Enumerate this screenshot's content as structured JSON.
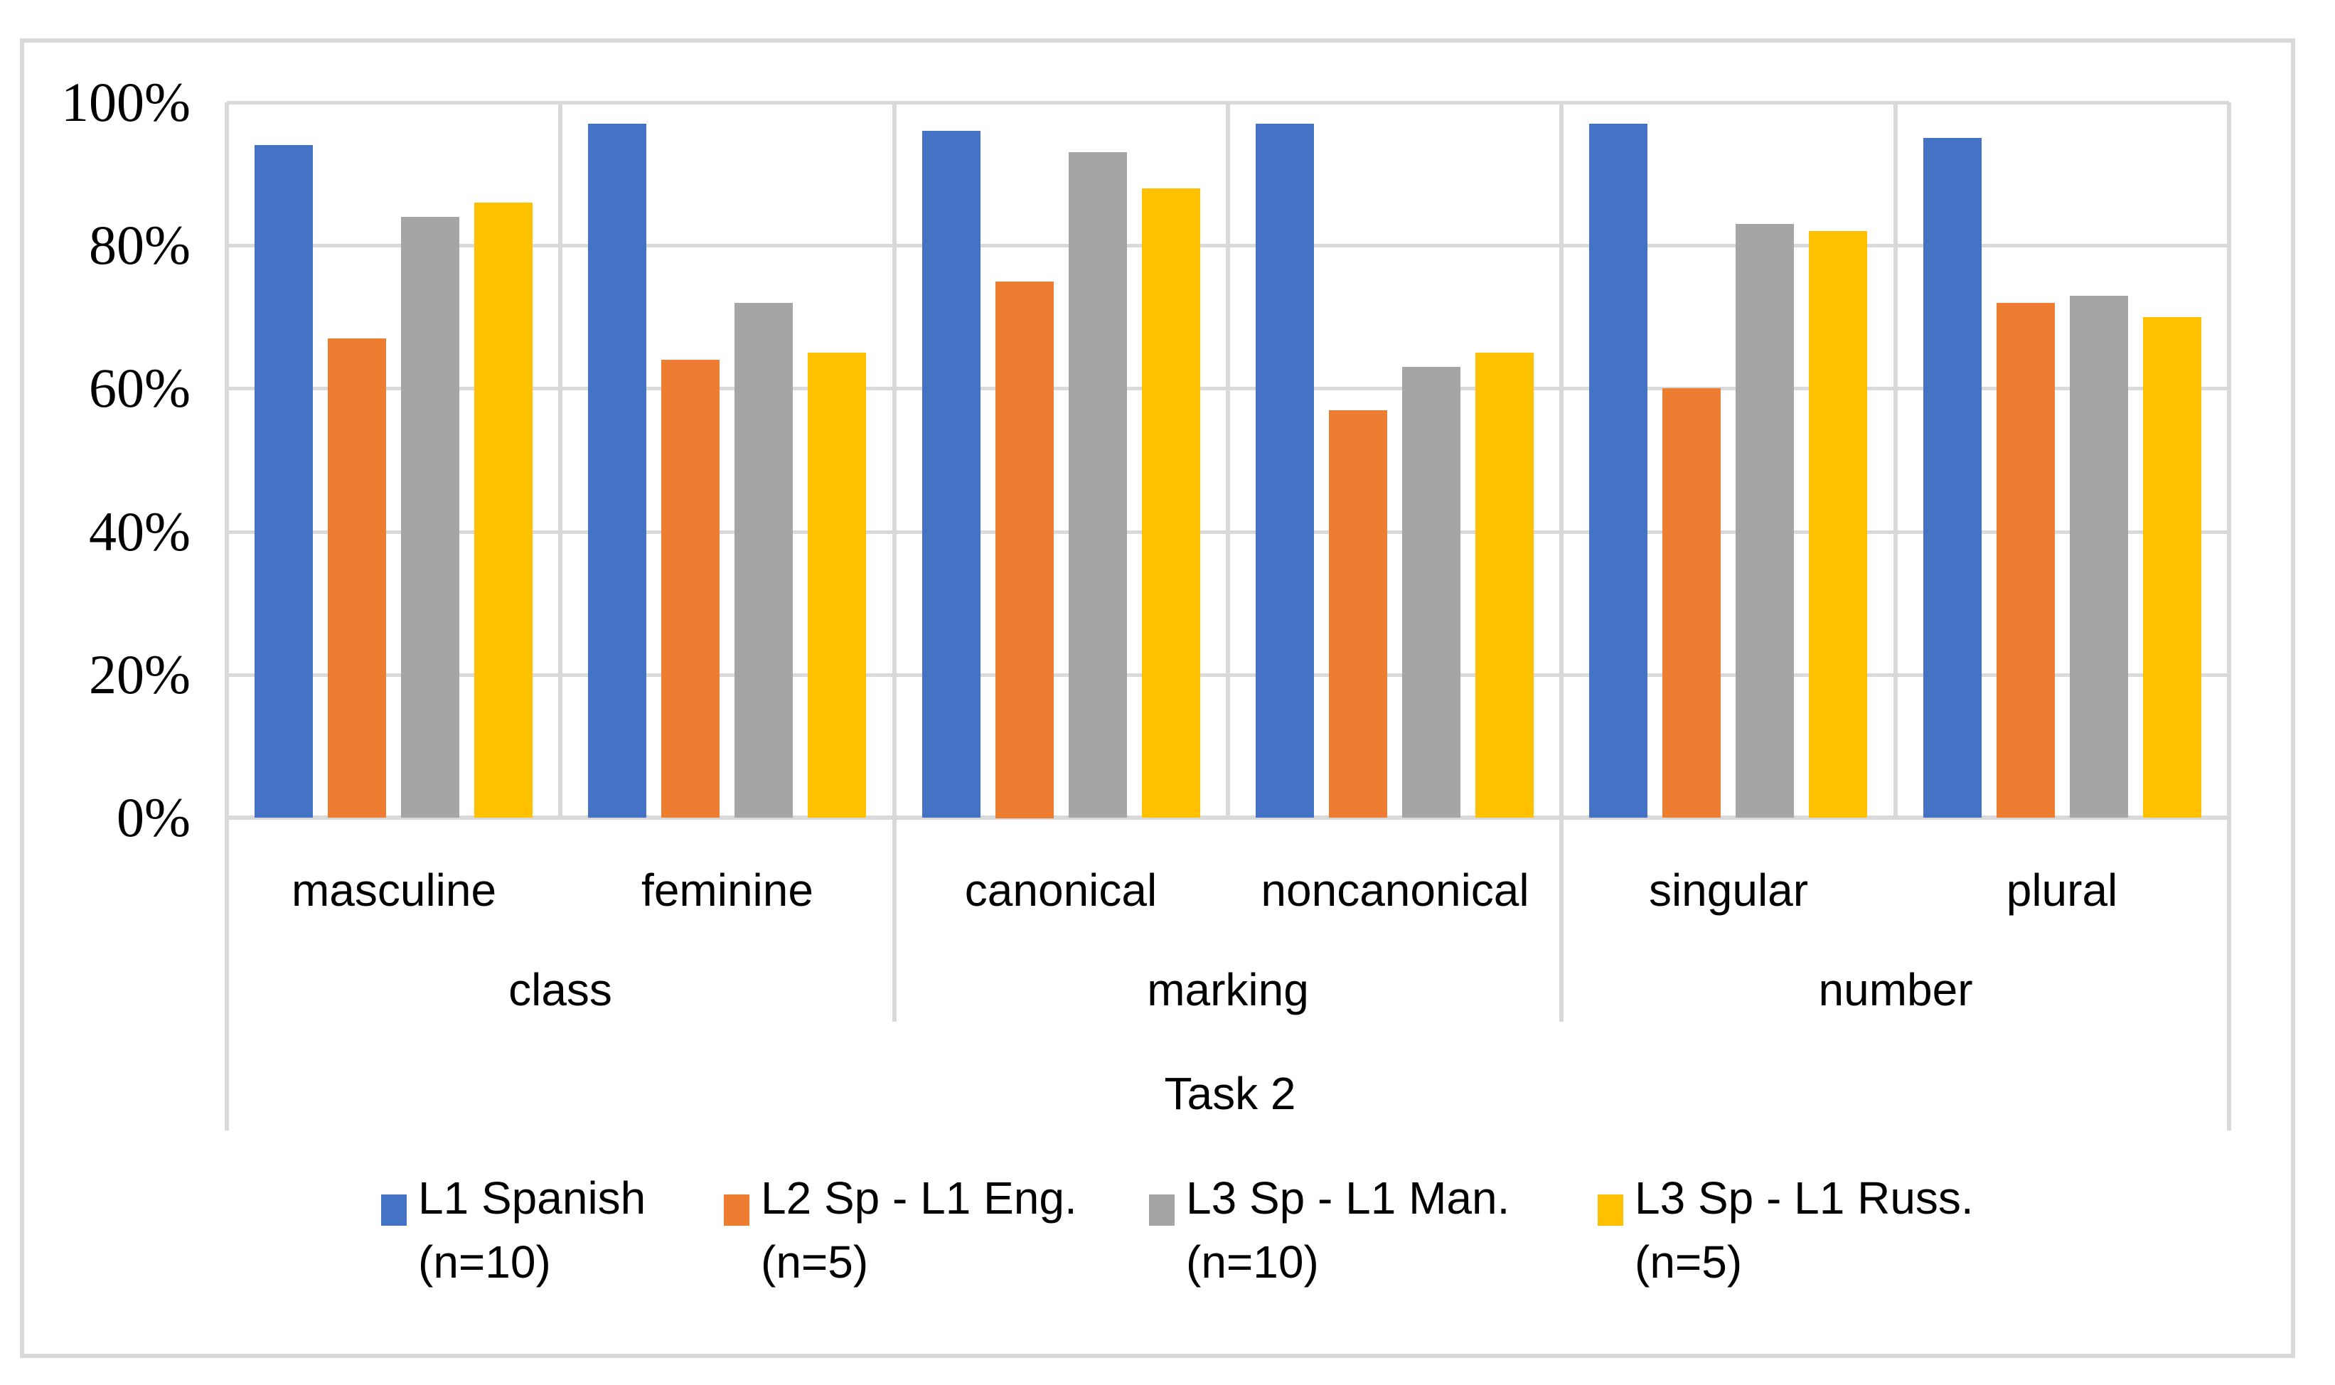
{
  "chart_data": {
    "type": "bar",
    "title": "",
    "x_axis_title": "Task 2",
    "ylabel": "",
    "xlabel": "",
    "ylim": [
      0,
      100
    ],
    "grid": true,
    "legend_position": "bottom",
    "values_unit": "percent",
    "y_axis": {
      "min": 0,
      "max": 100,
      "step": 20,
      "tick_labels": [
        "100%",
        "80%",
        "60%",
        "40%",
        "20%",
        "0%"
      ]
    },
    "categories": [
      "masculine",
      "feminine",
      "canonical",
      "noncanonical",
      "singular",
      "plural"
    ],
    "category_groups": [
      {
        "label": "class",
        "span": [
          "masculine",
          "feminine"
        ]
      },
      {
        "label": "marking",
        "span": [
          "canonical",
          "noncanonical"
        ]
      },
      {
        "label": "number",
        "span": [
          "singular",
          "plural"
        ]
      }
    ],
    "series": [
      {
        "name": "L1 Spanish",
        "subtitle": "(n=10)",
        "color": "#4472C4",
        "values": [
          94,
          97,
          96,
          97,
          97,
          95
        ]
      },
      {
        "name": "L2 Sp - L1 Eng.",
        "subtitle": "(n=5)",
        "color": "#ED7D31",
        "values": [
          67,
          64,
          75,
          57,
          60,
          72
        ]
      },
      {
        "name": "L3 Sp - L1 Man.",
        "subtitle": "(n=10)",
        "color": "#A5A5A5",
        "values": [
          84,
          72,
          93,
          63,
          83,
          73
        ]
      },
      {
        "name": "L3 Sp - L1 Russ.",
        "subtitle": "(n=5)",
        "color": "#FFC000",
        "values": [
          86,
          65,
          88,
          65,
          82,
          70
        ]
      }
    ]
  },
  "colors": {
    "background": "#FFFFFF",
    "gridline": "#D9D9D9",
    "figure_border": "#D9D9D9",
    "text": "#000000",
    "series_blue": "#4472C4",
    "series_orange": "#ED7D31",
    "series_gray": "#A5A5A5",
    "series_yellow": "#FFC000"
  }
}
